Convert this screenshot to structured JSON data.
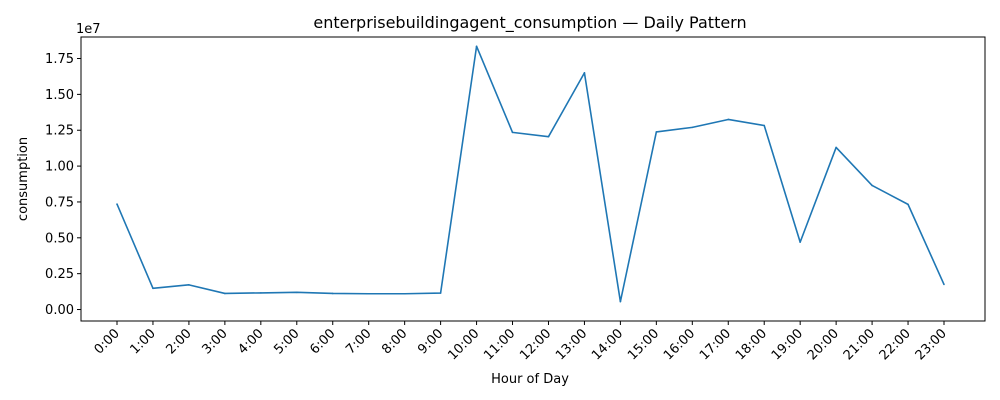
{
  "chart_data": {
    "type": "line",
    "title": "enterprisebuildingagent_consumption — Daily Pattern",
    "xlabel": "Hour of Day",
    "ylabel": "consumption",
    "y_offset_label": "1e7",
    "categories": [
      "0:00",
      "1:00",
      "2:00",
      "3:00",
      "4:00",
      "5:00",
      "6:00",
      "7:00",
      "8:00",
      "9:00",
      "10:00",
      "11:00",
      "12:00",
      "13:00",
      "14:00",
      "15:00",
      "16:00",
      "17:00",
      "18:00",
      "19:00",
      "20:00",
      "21:00",
      "22:00",
      "23:00"
    ],
    "y_ticks": [
      0,
      2500000,
      5000000,
      7500000,
      10000000,
      12500000,
      15000000,
      17500000
    ],
    "y_tick_labels": [
      "0.00",
      "0.25",
      "0.50",
      "0.75",
      "1.00",
      "1.25",
      "1.50",
      "1.75"
    ],
    "ylim": [
      -800000,
      19000000
    ],
    "grid": false,
    "series": [
      {
        "color": "#1f77b4",
        "values": [
          7350000,
          1480000,
          1720000,
          1120000,
          1160000,
          1200000,
          1120000,
          1100000,
          1100000,
          1150000,
          18350000,
          12350000,
          12050000,
          16500000,
          550000,
          12380000,
          12700000,
          13250000,
          12830000,
          4700000,
          11300000,
          8650000,
          7330000,
          1750000
        ]
      }
    ]
  }
}
